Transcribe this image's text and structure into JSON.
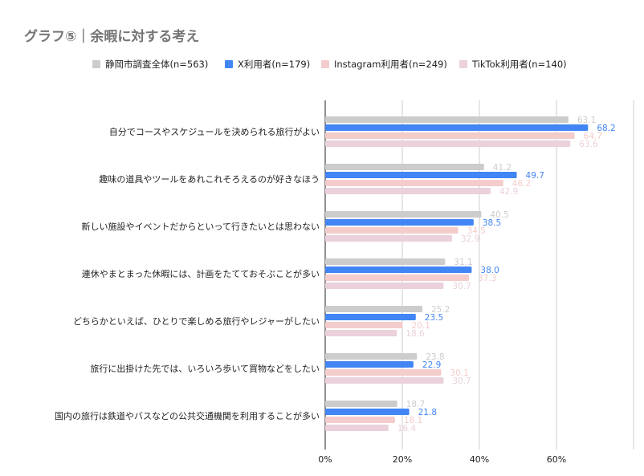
{
  "chart_data": {
    "type": "bar",
    "orientation": "horizontal",
    "title": "グラフ⑤｜余暇に対する考え",
    "categories": [
      "自分でコースやスケジュールを決められる旅行がよい",
      "趣味の道具やツールをあれこれそろえるのが好きなほう",
      "新しい施設やイベントだからといって行きたいとは思わない",
      "連休やまとまった休暇には、計画をたてておそぶことが多い",
      "どちらかといえば、ひとりで楽しめる旅行やレジャーがしたい",
      "旅行に出掛けた先では、いろいろ歩いて買物などをしたい",
      "国内の旅行は鉄道やバスなどの公共交通機関を利用することが多い"
    ],
    "series": [
      {
        "name": "静岡市調査全体(n=563)",
        "color": "#cccccc",
        "label_color": "#cccccc",
        "values": [
          63.1,
          41.2,
          40.5,
          31.1,
          25.2,
          23.8,
          18.7
        ]
      },
      {
        "name": "X利用者(n=179)",
        "color": "#4285f4",
        "label_color": "#4285f4",
        "values": [
          68.2,
          49.7,
          38.5,
          38.0,
          23.5,
          22.9,
          21.8
        ]
      },
      {
        "name": "Instagram利用者(n=249)",
        "color": "#f4cccc",
        "label_color": "#f4cccc",
        "values": [
          64.7,
          46.2,
          34.5,
          37.3,
          20.1,
          30.1,
          18.1
        ]
      },
      {
        "name": "TikTok利用者(n=140)",
        "color": "#ead1dc",
        "label_color": "#ead1dc",
        "values": [
          63.6,
          42.9,
          32.9,
          30.7,
          18.6,
          30.7,
          16.4
        ]
      }
    ],
    "xlim": [
      0,
      80
    ],
    "ticks": [
      0,
      20,
      40,
      60
    ],
    "tick_labels": [
      "0%",
      "20%",
      "40%",
      "60%"
    ],
    "grid": true,
    "legend_position": "top"
  }
}
